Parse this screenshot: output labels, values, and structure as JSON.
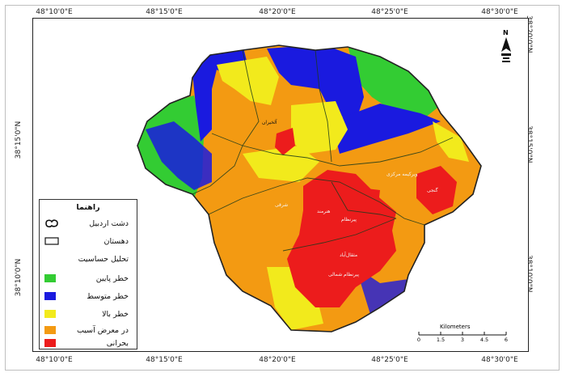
{
  "coordinates": {
    "top": [
      "48°10'0\"E",
      "48°15'0\"E",
      "48°20'0\"E",
      "48°25'0\"E",
      "48°30'0\"E"
    ],
    "bottom": [
      "48°10'0\"E",
      "48°15'0\"E",
      "48°20'0\"E",
      "48°25'0\"E",
      "48°30'0\"E"
    ],
    "left": [
      "38°15'0\"N",
      "38°10'0\"N"
    ],
    "right": [
      "38°20'0\"N",
      "38°15'0\"N",
      "38°10'0\"N"
    ]
  },
  "legend": {
    "title": "راهنما",
    "boundary_items": [
      {
        "label": "دشت اردبیل",
        "icon": "outline-boundary-icon"
      },
      {
        "label": "دهستان",
        "icon": "rectangle-boundary-icon"
      }
    ],
    "analysis_title": "تحلیل حساسیت",
    "classes": [
      {
        "label": "خطر پایین",
        "color": "#33cc33"
      },
      {
        "label": "خطر متوسط",
        "color": "#1a1adf"
      },
      {
        "label": "خطر بالا",
        "color": "#f2ea1c"
      },
      {
        "label": "در معرض آسیب",
        "color": "#f39a12"
      },
      {
        "label": "بحرانی",
        "color": "#ec1c1c"
      }
    ]
  },
  "north_arrow": {
    "letter": "N",
    "icon": "north-arrow-icon"
  },
  "scale_bar": {
    "title": "Kilometers",
    "ticks": [
      "0",
      "1.5",
      "3",
      "4.5",
      "6"
    ]
  },
  "place_labels": [
    "آلخیران",
    "ویرکیمه مرکزی",
    "پیرنظام",
    "شرقی",
    "هنرمند",
    "مثقال‌آباد",
    "پیرنظام شمالی",
    "گنجی"
  ]
}
